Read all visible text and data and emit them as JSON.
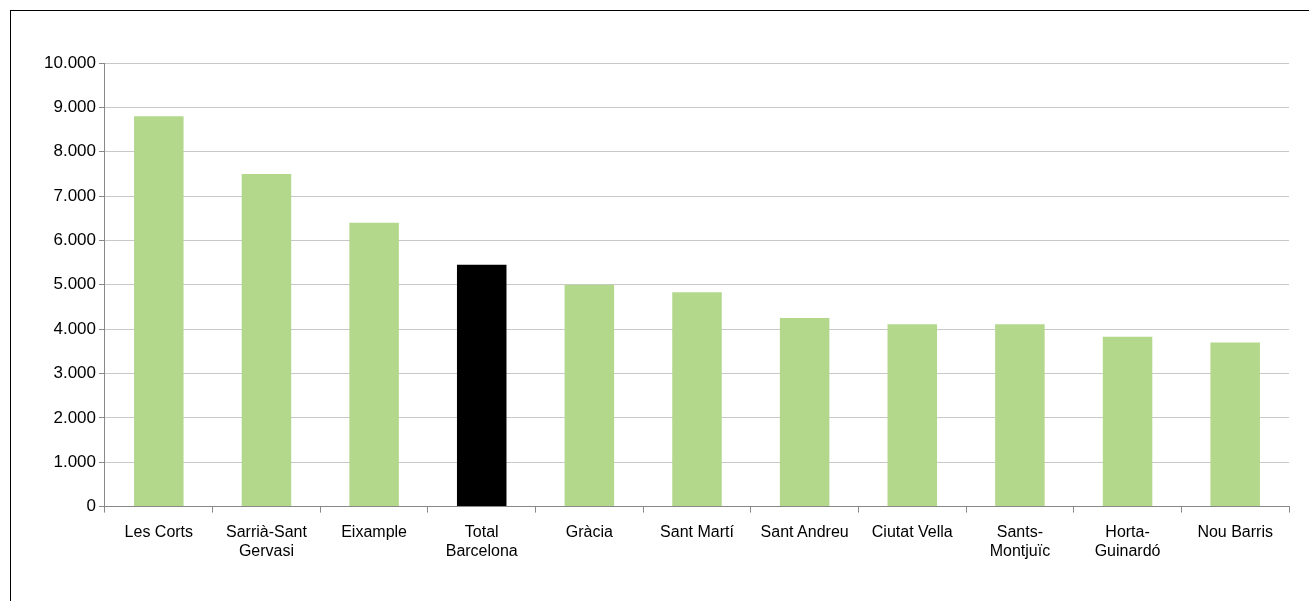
{
  "chart_data": {
    "type": "bar",
    "categories": [
      "Les Corts",
      "Sarrià-Sant Gervasi",
      "Eixample",
      "Total Barcelona",
      "Gràcia",
      "Sant Martí",
      "Sant Andreu",
      "Ciutat Vella",
      "Sants-Montjuïc",
      "Horta-Guinardó",
      "Nou Barris"
    ],
    "values": [
      8800,
      7500,
      6400,
      5450,
      5000,
      4830,
      4250,
      4110,
      4110,
      3830,
      3700
    ],
    "colors": [
      "#b3d88c",
      "#b3d88c",
      "#b3d88c",
      "#000000",
      "#b3d88c",
      "#b3d88c",
      "#b3d88c",
      "#b3d88c",
      "#b3d88c",
      "#b3d88c",
      "#b3d88c"
    ],
    "ylim": [
      0,
      10000
    ],
    "yticks": [
      {
        "value": 0,
        "label": "0"
      },
      {
        "value": 1000,
        "label": "1.000"
      },
      {
        "value": 2000,
        "label": "2.000"
      },
      {
        "value": 3000,
        "label": "3.000"
      },
      {
        "value": 4000,
        "label": "4.000"
      },
      {
        "value": 5000,
        "label": "5.000"
      },
      {
        "value": 6000,
        "label": "6.000"
      },
      {
        "value": 7000,
        "label": "7.000"
      },
      {
        "value": 8000,
        "label": "8.000"
      },
      {
        "value": 9000,
        "label": "9.000"
      },
      {
        "value": 10000,
        "label": "10.000"
      }
    ],
    "grid": "y",
    "legend": false
  }
}
